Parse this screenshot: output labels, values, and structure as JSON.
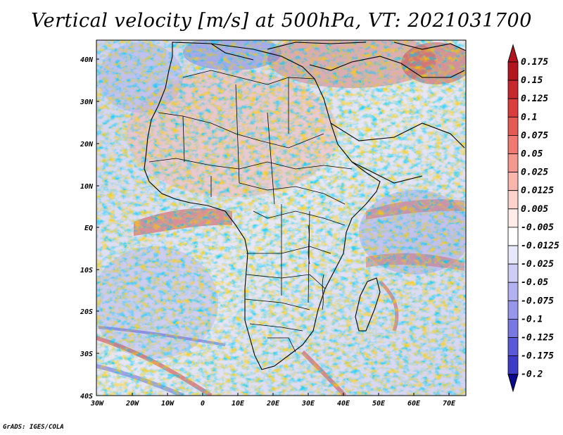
{
  "title": "Vertical velocity [m/s] at 500hPa, VT: 2021031700",
  "credit": "GrADS: IGES/COLA",
  "lat_labels": [
    "40N",
    "30N",
    "20N",
    "10N",
    "EQ",
    "10S",
    "20S",
    "30S",
    "40S"
  ],
  "lon_labels": [
    "30W",
    "20W",
    "10W",
    "0",
    "10E",
    "20E",
    "30E",
    "40E",
    "50E",
    "60E",
    "70E"
  ],
  "colorbar": {
    "levels": [
      "0.175",
      "0.15",
      "0.125",
      "0.1",
      "0.075",
      "0.05",
      "0.025",
      "0.0125",
      "0.005",
      "-0.005",
      "-0.0125",
      "-0.025",
      "-0.05",
      "-0.075",
      "-0.1",
      "-0.125",
      "-0.175",
      "-0.2"
    ],
    "colors": [
      "#b4141e",
      "#c8282d",
      "#dc3c3c",
      "#e65a55",
      "#f07a72",
      "#f5988f",
      "#f9b6ad",
      "#fcd2cb",
      "#ffecea",
      "#ffffff",
      "#e8e8fb",
      "#cdcdf6",
      "#b2b2f0",
      "#9696ea",
      "#7878e2",
      "#5a5ad8",
      "#3c3cc8",
      "#1e1eaa",
      "#0a0a8c"
    ]
  },
  "map": {
    "extent": {
      "lon_min": -30,
      "lon_max": 75,
      "lat_min": -40,
      "lat_max": 45
    },
    "field_colors": {
      "positive": "#d23c3c",
      "negative": "#5050d8",
      "neutral": "#ffffff"
    }
  }
}
